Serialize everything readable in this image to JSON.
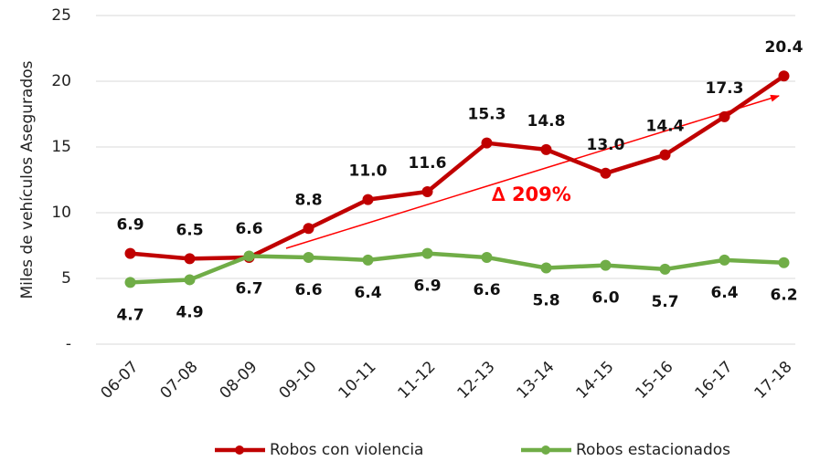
{
  "chart_data": {
    "type": "line",
    "ylabel": "Miles de vehículos Asegurados",
    "categories": [
      "06-07",
      "07-08",
      "08-09",
      "09-10",
      "10-11",
      "11-12",
      "12-13",
      "13-14",
      "14-15",
      "15-16",
      "16-17",
      "17-18"
    ],
    "series": [
      {
        "name": "Robos con violencia",
        "color": "#c00000",
        "values": [
          6.9,
          6.5,
          6.6,
          8.8,
          11.0,
          11.6,
          15.3,
          14.8,
          13.0,
          14.4,
          17.3,
          20.4
        ],
        "value_labels": [
          "6.9",
          "6.5",
          "6.6",
          "8.8",
          "11.0",
          "11.6",
          "15.3",
          "14.8",
          "13.0",
          "14.4",
          "17.3",
          "20.4"
        ]
      },
      {
        "name": "Robos estacionados",
        "color": "#70ad47",
        "values": [
          4.7,
          4.9,
          6.7,
          6.6,
          6.4,
          6.9,
          6.6,
          5.8,
          6.0,
          5.7,
          6.4,
          6.2
        ],
        "value_labels": [
          "4.7",
          "4.9",
          "6.7",
          "6.6",
          "6.4",
          "6.9",
          "6.6",
          "5.8",
          "6.0",
          "5.7",
          "6.4",
          "6.2"
        ]
      }
    ],
    "ylim": [
      0,
      25
    ],
    "yticks": [
      {
        "value": 0,
        "label": "-"
      },
      5,
      10,
      15,
      20,
      25
    ],
    "grid": true,
    "annotation": "∆ 209%",
    "legend": "bottom"
  }
}
